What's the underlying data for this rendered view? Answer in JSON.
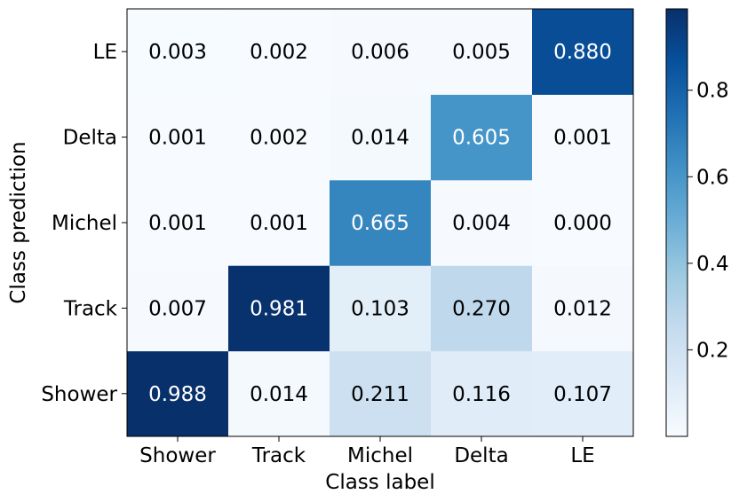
{
  "chart_data": {
    "type": "heatmap",
    "x_categories": [
      "Shower",
      "Track",
      "Michel",
      "Delta",
      "LE"
    ],
    "y_categories": [
      "Shower",
      "Track",
      "Michel",
      "Delta",
      "LE"
    ],
    "xlabel": "Class label",
    "ylabel": "Class prediction",
    "values": [
      [
        0.988,
        0.014,
        0.211,
        0.116,
        0.107
      ],
      [
        0.007,
        0.981,
        0.103,
        0.27,
        0.012
      ],
      [
        0.001,
        0.001,
        0.665,
        0.004,
        0.0
      ],
      [
        0.001,
        0.002,
        0.014,
        0.605,
        0.001
      ],
      [
        0.003,
        0.002,
        0.006,
        0.005,
        0.88
      ]
    ],
    "value_format": "0.000",
    "colormap": "Blues",
    "colorbar": {
      "min": 0.0,
      "max": 0.988,
      "ticks": [
        0.2,
        0.4,
        0.6,
        0.8
      ],
      "tick_labels": [
        "0.2",
        "0.4",
        "0.6",
        "0.8"
      ]
    }
  }
}
